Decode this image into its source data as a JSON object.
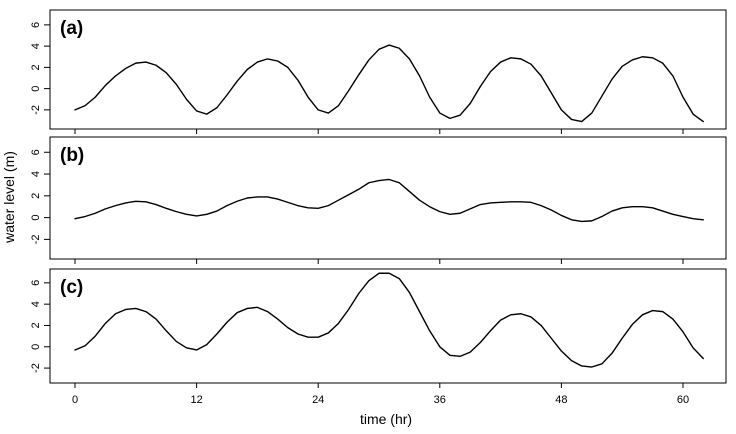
{
  "chart_data": {
    "type": "line",
    "ylabel": "water level (m)",
    "xlabel": "time (hr)",
    "xlim": [
      0,
      62
    ],
    "x_ticks": [
      0,
      12,
      24,
      36,
      48,
      60
    ],
    "x_tick_labels": [
      "0",
      "12",
      "24",
      "36",
      "48",
      "60"
    ],
    "y_ticks": [
      -2,
      0,
      2,
      4,
      6
    ],
    "y_tick_labels": [
      "-2",
      "0",
      "2",
      "4",
      "6"
    ],
    "line_color": "#000000",
    "panels": [
      {
        "label": "(a)",
        "ylim": [
          -3.8,
          7.4
        ],
        "x": [
          0,
          1,
          2,
          3,
          4,
          5,
          6,
          7,
          8,
          9,
          10,
          11,
          12,
          13,
          14,
          15,
          16,
          17,
          18,
          19,
          20,
          21,
          22,
          23,
          24,
          25,
          26,
          27,
          28,
          29,
          30,
          31,
          32,
          33,
          34,
          35,
          36,
          37,
          38,
          39,
          40,
          41,
          42,
          43,
          44,
          45,
          46,
          47,
          48,
          49,
          50,
          51,
          52,
          53,
          54,
          55,
          56,
          57,
          58,
          59,
          60,
          61,
          62
        ],
        "y": [
          -2.0,
          -1.6,
          -0.8,
          0.3,
          1.2,
          1.9,
          2.4,
          2.5,
          2.2,
          1.5,
          0.4,
          -1.0,
          -2.1,
          -2.4,
          -1.8,
          -0.6,
          0.7,
          1.8,
          2.5,
          2.8,
          2.6,
          2.0,
          0.8,
          -0.8,
          -2.0,
          -2.3,
          -1.6,
          -0.2,
          1.3,
          2.7,
          3.7,
          4.1,
          3.8,
          2.8,
          1.2,
          -0.8,
          -2.3,
          -2.8,
          -2.5,
          -1.4,
          0.2,
          1.6,
          2.5,
          2.9,
          2.8,
          2.3,
          1.2,
          -0.4,
          -2.0,
          -2.9,
          -3.1,
          -2.3,
          -0.7,
          0.9,
          2.1,
          2.7,
          3.0,
          2.9,
          2.4,
          1.2,
          -0.8,
          -2.4,
          -3.1
        ]
      },
      {
        "label": "(b)",
        "ylim": [
          -3.8,
          7.4
        ],
        "x": [
          0,
          1,
          2,
          3,
          4,
          5,
          6,
          7,
          8,
          9,
          10,
          11,
          12,
          13,
          14,
          15,
          16,
          17,
          18,
          19,
          20,
          21,
          22,
          23,
          24,
          25,
          26,
          27,
          28,
          29,
          30,
          31,
          32,
          33,
          34,
          35,
          36,
          37,
          38,
          39,
          40,
          41,
          42,
          43,
          44,
          45,
          46,
          47,
          48,
          49,
          50,
          51,
          52,
          53,
          54,
          55,
          56,
          57,
          58,
          59,
          60,
          61,
          62
        ],
        "y": [
          -0.1,
          0.1,
          0.4,
          0.8,
          1.1,
          1.35,
          1.5,
          1.45,
          1.2,
          0.85,
          0.55,
          0.3,
          0.15,
          0.3,
          0.6,
          1.1,
          1.5,
          1.8,
          1.9,
          1.9,
          1.7,
          1.4,
          1.1,
          0.9,
          0.85,
          1.1,
          1.6,
          2.1,
          2.6,
          3.2,
          3.4,
          3.5,
          3.2,
          2.4,
          1.6,
          1.0,
          0.55,
          0.3,
          0.4,
          0.8,
          1.2,
          1.35,
          1.4,
          1.45,
          1.45,
          1.4,
          1.1,
          0.7,
          0.2,
          -0.2,
          -0.35,
          -0.3,
          0.1,
          0.6,
          0.9,
          1.0,
          1.0,
          0.9,
          0.6,
          0.3,
          0.1,
          -0.1,
          -0.2
        ]
      },
      {
        "label": "(c)",
        "ylim": [
          -3.4,
          7.3
        ],
        "x": [
          0,
          1,
          2,
          3,
          4,
          5,
          6,
          7,
          8,
          9,
          10,
          11,
          12,
          13,
          14,
          15,
          16,
          17,
          18,
          19,
          20,
          21,
          22,
          23,
          24,
          25,
          26,
          27,
          28,
          29,
          30,
          31,
          32,
          33,
          34,
          35,
          36,
          37,
          38,
          39,
          40,
          41,
          42,
          43,
          44,
          45,
          46,
          47,
          48,
          49,
          50,
          51,
          52,
          53,
          54,
          55,
          56,
          57,
          58,
          59,
          60,
          61,
          62
        ],
        "y": [
          -0.3,
          0.1,
          1.0,
          2.2,
          3.1,
          3.5,
          3.6,
          3.3,
          2.6,
          1.5,
          0.5,
          -0.1,
          -0.3,
          0.2,
          1.2,
          2.3,
          3.2,
          3.6,
          3.7,
          3.3,
          2.6,
          1.8,
          1.2,
          0.9,
          0.9,
          1.3,
          2.2,
          3.5,
          5.0,
          6.2,
          6.9,
          6.9,
          6.4,
          5.1,
          3.3,
          1.5,
          0.0,
          -0.8,
          -0.9,
          -0.5,
          0.4,
          1.5,
          2.5,
          3.0,
          3.1,
          2.8,
          2.0,
          0.8,
          -0.4,
          -1.3,
          -1.8,
          -1.9,
          -1.6,
          -0.6,
          0.8,
          2.1,
          3.0,
          3.4,
          3.3,
          2.6,
          1.4,
          -0.1,
          -1.1
        ]
      }
    ]
  }
}
